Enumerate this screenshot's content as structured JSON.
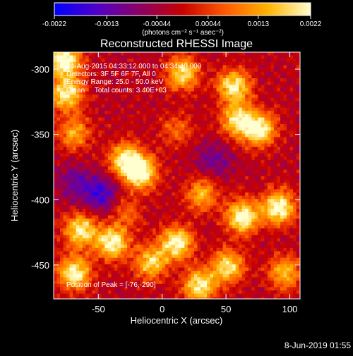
{
  "colorbar": {
    "tick_labels": [
      "-0.0022",
      "-0.0013",
      "-0.00044",
      "0.00044",
      "0.0013",
      "0.0022"
    ],
    "tick_values": [
      -0.0022,
      -0.0013,
      -0.00044,
      0.00044,
      0.0013,
      0.0022
    ],
    "range": [
      -0.0022,
      0.0022
    ],
    "units_label": "(photons cm⁻² s⁻¹ asec⁻²)",
    "colors": [
      "#0000ff",
      "#5000c8",
      "#8c0064",
      "#c80000",
      "#ff5a00",
      "#ffb400",
      "#ffffd0"
    ]
  },
  "chart_data": {
    "type": "heatmap",
    "title": "Reconstructed RHESSI Image",
    "xlabel": "Heliocentric X (arcsec)",
    "ylabel": "Heliocentric Y (arcsec)",
    "xlim": [
      -85,
      108
    ],
    "ylim": [
      -476,
      -287
    ],
    "x_ticks": [
      -50,
      0,
      50,
      100
    ],
    "y_ticks": [
      -300,
      -350,
      -400,
      -450
    ],
    "x_tick_labels": [
      "-50",
      "0",
      "50",
      "100"
    ],
    "y_tick_labels": [
      "-300",
      "-350",
      "-400",
      "-450"
    ],
    "peak_position": [
      -76,
      -290
    ],
    "emission_regions": [
      {
        "x": -78,
        "y": -292,
        "level": 1.0
      },
      {
        "x": -76,
        "y": -318,
        "level": 0.85
      },
      {
        "x": 15,
        "y": -302,
        "level": 0.8
      },
      {
        "x": 55,
        "y": -312,
        "level": 0.85
      },
      {
        "x": 75,
        "y": -345,
        "level": 0.9
      },
      {
        "x": 58,
        "y": -338,
        "level": 0.8
      },
      {
        "x": -18,
        "y": -378,
        "level": 0.95
      },
      {
        "x": -30,
        "y": -368,
        "level": 0.85
      },
      {
        "x": -70,
        "y": -348,
        "level": 0.55
      },
      {
        "x": 90,
        "y": -405,
        "level": 0.95
      },
      {
        "x": 62,
        "y": -412,
        "level": 0.95
      },
      {
        "x": 30,
        "y": -395,
        "level": 0.6
      },
      {
        "x": 10,
        "y": -432,
        "level": 0.9
      },
      {
        "x": -40,
        "y": -432,
        "level": 0.9
      },
      {
        "x": -65,
        "y": -422,
        "level": 0.85
      },
      {
        "x": -70,
        "y": -455,
        "level": 0.9
      },
      {
        "x": -10,
        "y": -447,
        "level": 0.75
      },
      {
        "x": 50,
        "y": -450,
        "level": 0.8
      },
      {
        "x": 28,
        "y": -465,
        "level": 0.85
      },
      {
        "x": 95,
        "y": -455,
        "level": 0.65
      },
      {
        "x": -30,
        "y": -408,
        "level": 0.35
      },
      {
        "x": 10,
        "y": -345,
        "level": 0.35
      }
    ],
    "negative_regions": [
      {
        "x": -50,
        "y": -395,
        "level": 1.0
      },
      {
        "x": 40,
        "y": -368,
        "level": 0.6
      },
      {
        "x": -70,
        "y": -385,
        "level": 0.6
      }
    ]
  },
  "overlay": {
    "line1": "24-Aug-2015 04:33:12.000 to 04:34:40.000",
    "line2": "Detectors: 3F 5F 6F 7F, All 0",
    "line3": "Energy Range: 25.0 - 50.0 keV",
    "line4": "Clean     Total counts: 3.40E+03",
    "peak_text": "Position of Peak = [-76,-290]"
  },
  "footer": {
    "date": "8-Jun-2019 01:55"
  }
}
